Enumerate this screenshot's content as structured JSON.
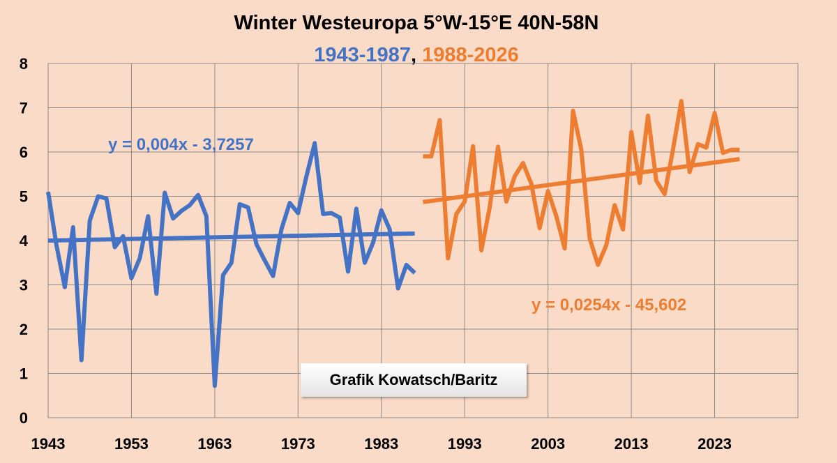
{
  "chart_data": {
    "type": "line",
    "title": "Winter Westeuropa 5°W-15°E 40N-58N",
    "subtitle_parts": [
      {
        "text": "1943-1987",
        "color": "#4472c4"
      },
      {
        "text": ", ",
        "color": "#000000"
      },
      {
        "text": "1988-2026",
        "color": "#ed7d31"
      }
    ],
    "xlim": [
      1943,
      2033
    ],
    "ylim": [
      0,
      8
    ],
    "x_ticks": [
      1943,
      1953,
      1963,
      1973,
      1983,
      1993,
      2003,
      2013,
      2023
    ],
    "y_ticks": [
      0,
      1,
      2,
      3,
      4,
      5,
      6,
      7,
      8
    ],
    "grid": true,
    "series": [
      {
        "name": "1943-1987",
        "color": "#4472c4",
        "x": [
          1943,
          1944,
          1945,
          1946,
          1947,
          1948,
          1949,
          1950,
          1951,
          1952,
          1953,
          1954,
          1955,
          1956,
          1957,
          1958,
          1959,
          1960,
          1961,
          1962,
          1963,
          1964,
          1965,
          1966,
          1967,
          1968,
          1969,
          1970,
          1971,
          1972,
          1973,
          1974,
          1975,
          1976,
          1977,
          1978,
          1979,
          1980,
          1981,
          1982,
          1983,
          1984,
          1985,
          1986,
          1987
        ],
        "y": [
          5.1,
          3.9,
          2.95,
          4.3,
          1.3,
          4.45,
          5.0,
          4.95,
          3.85,
          4.1,
          3.15,
          3.6,
          4.55,
          2.8,
          5.08,
          4.5,
          4.67,
          4.8,
          5.03,
          4.55,
          0.72,
          3.22,
          3.5,
          4.82,
          4.75,
          3.92,
          3.55,
          3.2,
          4.25,
          4.85,
          4.62,
          5.45,
          6.2,
          4.6,
          4.62,
          4.52,
          3.3,
          4.72,
          3.5,
          3.95,
          4.68,
          4.25,
          2.92,
          3.45,
          3.27
        ]
      },
      {
        "name": "1988-2026",
        "color": "#ed7d31",
        "x": [
          1988,
          1989,
          1990,
          1991,
          1992,
          1993,
          1994,
          1995,
          1996,
          1997,
          1998,
          1999,
          2000,
          2001,
          2002,
          2003,
          2004,
          2005,
          2006,
          2007,
          2008,
          2009,
          2010,
          2011,
          2012,
          2013,
          2014,
          2015,
          2016,
          2017,
          2018,
          2019,
          2020,
          2021,
          2022,
          2023,
          2024,
          2025,
          2026
        ],
        "y": [
          5.9,
          5.9,
          6.72,
          3.6,
          4.6,
          4.88,
          6.13,
          3.78,
          4.75,
          6.12,
          4.88,
          5.45,
          5.75,
          5.28,
          4.28,
          5.12,
          4.55,
          3.82,
          6.93,
          6.05,
          4.05,
          3.45,
          3.9,
          4.8,
          4.25,
          6.45,
          5.3,
          6.82,
          5.35,
          5.05,
          6.05,
          7.15,
          5.55,
          6.18,
          6.1,
          6.88,
          5.98,
          6.05,
          6.05
        ]
      }
    ],
    "trendlines": [
      {
        "equation": "y = 0,004x - 3,7257",
        "color": "#4472c4",
        "x": [
          1943,
          1987
        ],
        "y": [
          4.0,
          4.16
        ]
      },
      {
        "equation": "y = 0,0254x - 45,602",
        "color": "#ed7d31",
        "x": [
          1988,
          2026
        ],
        "y": [
          4.87,
          5.84
        ]
      }
    ]
  },
  "credit": "Grafik Kowatsch/Baritz"
}
